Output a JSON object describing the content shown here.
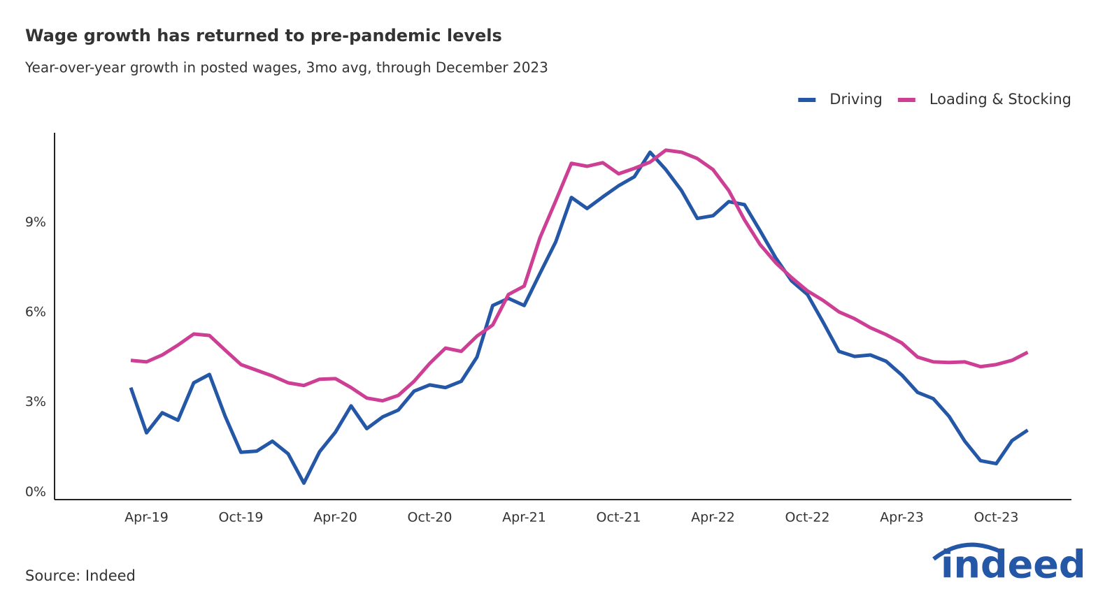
{
  "chart_data": {
    "type": "line",
    "title": "Wage growth has returned to pre-pandemic levels",
    "subtitle": "Year-over-year growth in posted wages, 3mo avg, through December 2023",
    "source": "Source: Indeed",
    "logo": "indeed",
    "categories": [
      null,
      "Apr-19",
      null,
      null,
      null,
      null,
      null,
      "Oct-19",
      null,
      null,
      null,
      null,
      null,
      "Apr-20",
      null,
      null,
      null,
      null,
      null,
      "Oct-20",
      null,
      null,
      null,
      null,
      null,
      "Apr-21",
      null,
      null,
      null,
      null,
      null,
      "Oct-21",
      null,
      null,
      null,
      null,
      null,
      "Apr-22",
      null,
      null,
      null,
      null,
      null,
      "Oct-22",
      null,
      null,
      null,
      null,
      null,
      "Apr-23",
      null,
      null,
      null,
      null,
      null,
      "Oct-23",
      null,
      null
    ],
    "series": [
      {
        "name": "Driving",
        "color": "#2557a7",
        "values": [
          3.49,
          1.98,
          2.65,
          2.4,
          3.65,
          3.93,
          2.53,
          1.33,
          1.37,
          1.7,
          1.28,
          0.3,
          1.35,
          2.0,
          2.88,
          2.12,
          2.51,
          2.74,
          3.37,
          3.58,
          3.49,
          3.7,
          4.51,
          6.23,
          6.47,
          6.23,
          7.3,
          8.35,
          9.84,
          9.47,
          9.86,
          10.23,
          10.53,
          11.35,
          10.77,
          10.07,
          9.14,
          9.23,
          9.7,
          9.6,
          8.72,
          7.81,
          7.05,
          6.6,
          5.67,
          4.7,
          4.53,
          4.58,
          4.37,
          3.91,
          3.33,
          3.12,
          2.53,
          1.7,
          1.05,
          0.95,
          1.72,
          2.07
        ]
      },
      {
        "name": "Loading & Stocking",
        "color": "#cd3f94",
        "values": [
          4.4,
          4.35,
          4.58,
          4.91,
          5.28,
          5.23,
          4.74,
          4.26,
          4.07,
          3.88,
          3.65,
          3.56,
          3.77,
          3.79,
          3.49,
          3.14,
          3.05,
          3.23,
          3.7,
          4.3,
          4.81,
          4.7,
          5.21,
          5.58,
          6.6,
          6.88,
          8.49,
          9.72,
          10.98,
          10.88,
          11.0,
          10.63,
          10.81,
          11.02,
          11.42,
          11.35,
          11.14,
          10.77,
          10.07,
          9.09,
          8.26,
          7.65,
          7.16,
          6.72,
          6.4,
          6.02,
          5.79,
          5.49,
          5.26,
          4.98,
          4.51,
          4.35,
          4.33,
          4.35,
          4.19,
          4.26,
          4.4,
          4.67
        ]
      }
    ],
    "ylim": [
      -0.25,
      12
    ],
    "yticks": [
      {
        "value": 0,
        "label": "0%"
      },
      {
        "value": 3,
        "label": "3%"
      },
      {
        "value": 6,
        "label": "6%"
      },
      {
        "value": 9,
        "label": "9%"
      }
    ],
    "grid": false,
    "legend": "top-right"
  }
}
